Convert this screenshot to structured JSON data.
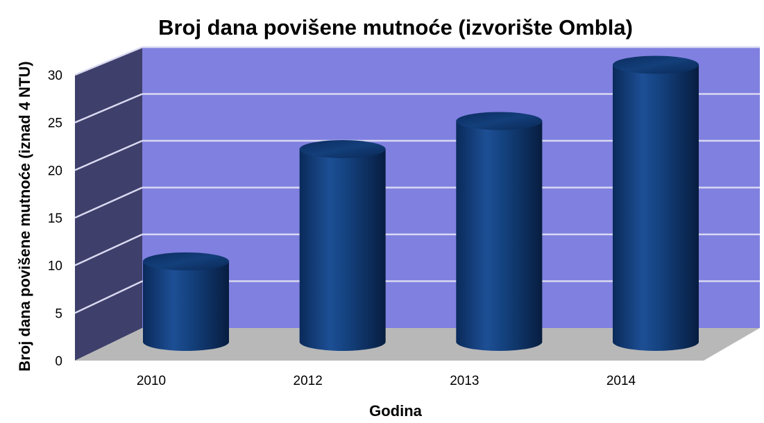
{
  "chart_data": {
    "type": "bar",
    "style": "3d-cylinder",
    "title": "Broj dana povišene mutnoće (izvorište Ombla)",
    "xlabel": "Godina",
    "ylabel": "Broj dana povišene mutnoće (iznad 4 NTU)",
    "categories": [
      "2010",
      "2012",
      "2013",
      "2014"
    ],
    "values": [
      8,
      20,
      23,
      29
    ],
    "ylim": [
      0,
      30
    ],
    "yticks": [
      "0",
      "5",
      "10",
      "15",
      "20",
      "25",
      "30"
    ],
    "grid": true,
    "legend": "none",
    "colors": {
      "back_wall": "#8080e0",
      "side_wall": "#3f3f6b",
      "floor": "#b8b8b8",
      "gridline": "#d9d9f2",
      "bar": "#12407c",
      "bar_dark": "#0a2550",
      "bar_light": "#2a5fa8"
    }
  }
}
